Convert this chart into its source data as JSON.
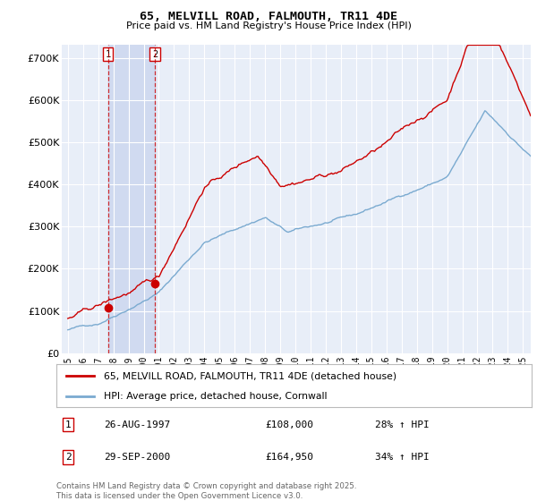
{
  "title": "65, MELVILL ROAD, FALMOUTH, TR11 4DE",
  "subtitle": "Price paid vs. HM Land Registry's House Price Index (HPI)",
  "red_label": "65, MELVILL ROAD, FALMOUTH, TR11 4DE (detached house)",
  "blue_label": "HPI: Average price, detached house, Cornwall",
  "ylabel_ticks": [
    "£0",
    "£100K",
    "£200K",
    "£300K",
    "£400K",
    "£500K",
    "£600K",
    "£700K"
  ],
  "ytick_vals": [
    0,
    100000,
    200000,
    300000,
    400000,
    500000,
    600000,
    700000
  ],
  "ylim": [
    0,
    730000
  ],
  "sale1": {
    "date_num": 1997.648,
    "price": 108000,
    "label": "1",
    "date_str": "26-AUG-1997",
    "price_str": "£108,000",
    "hpi_str": "28% ↑ HPI"
  },
  "sale2": {
    "date_num": 2000.747,
    "price": 164950,
    "label": "2",
    "date_str": "29-SEP-2000",
    "price_str": "£164,950",
    "hpi_str": "34% ↑ HPI"
  },
  "footer": "Contains HM Land Registry data © Crown copyright and database right 2025.\nThis data is licensed under the Open Government Licence v3.0.",
  "background_color": "#e8eef8",
  "shade_color": "#d0daf0",
  "red_color": "#cc0000",
  "blue_color": "#7aaad0",
  "grid_color": "#ffffff",
  "xlim_start": 1994.6,
  "xlim_end": 2025.5
}
